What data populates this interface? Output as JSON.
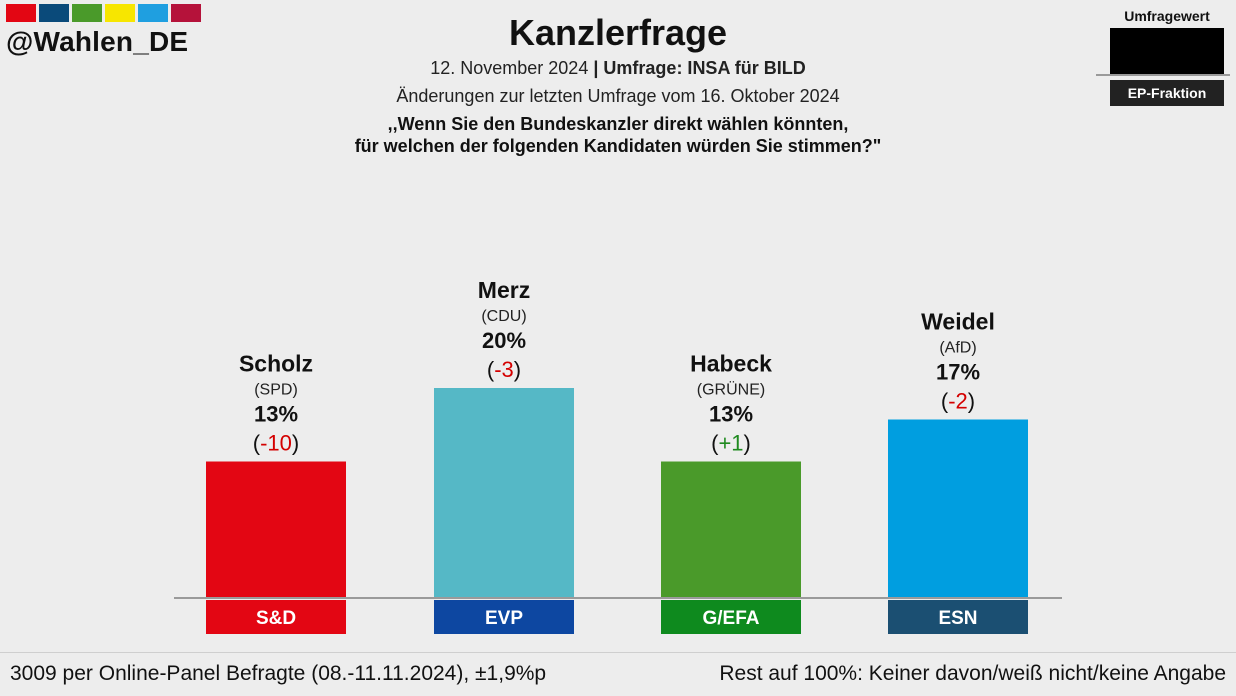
{
  "brand": {
    "handle": "@Wahlen_DE",
    "stripe_colors": [
      "#e30613",
      "#0a4a7a",
      "#4a9a2a",
      "#f7e600",
      "#1f9fe0",
      "#b5123a"
    ]
  },
  "header": {
    "title": "Kanzlerfrage",
    "date": "12. November 2024",
    "separator": "|",
    "source": "Umfrage: INSA für BILD",
    "changes_note": "Änderungen zur letzten Umfrage vom 16. Oktober 2024",
    "question_line1": ",,Wenn Sie den Bundeskanzler direkt wählen könnten,",
    "question_line2": "für welchen der folgenden Kandidaten würden Sie stimmen?\""
  },
  "legend": {
    "title": "Umfragewert",
    "label": "EP-Fraktion"
  },
  "chart_data": {
    "type": "bar",
    "title": "Kanzlerfrage",
    "unit": "%",
    "categories": [
      "Scholz",
      "Merz",
      "Habeck",
      "Weidel"
    ],
    "values": [
      13,
      20,
      13,
      17
    ],
    "parties": [
      "(SPD)",
      "(CDU)",
      "(GRÜNE)",
      "(AfD)"
    ],
    "value_labels": [
      "13%",
      "20%",
      "13%",
      "17%"
    ],
    "changes": [
      {
        "open": "(",
        "value": "-10",
        "close": ")"
      },
      {
        "open": "(",
        "value": "-3",
        "close": ")"
      },
      {
        "open": "(",
        "value": "+1",
        "close": ")"
      },
      {
        "open": "(",
        "value": "-2",
        "close": ")"
      }
    ],
    "groups": [
      "S&D",
      "EVP",
      "G/EFA",
      "ESN"
    ],
    "bar_colors": [
      "#e30613",
      "#55b8c6",
      "#4a9a2a",
      "#009ee0"
    ],
    "group_colors": [
      "#e30613",
      "#0d47a1",
      "#0e8a1e",
      "#1b4f72"
    ],
    "change_colors": {
      "negative": "#d40000",
      "positive": "#1f8a1f"
    },
    "ylim": [
      0,
      30
    ]
  },
  "footer": {
    "left": "3009 per Online-Panel Befragte (08.-11.11.2024), ±1,9%p",
    "right": "Rest auf 100%: Keiner davon/weiß nicht/keine Angabe"
  }
}
